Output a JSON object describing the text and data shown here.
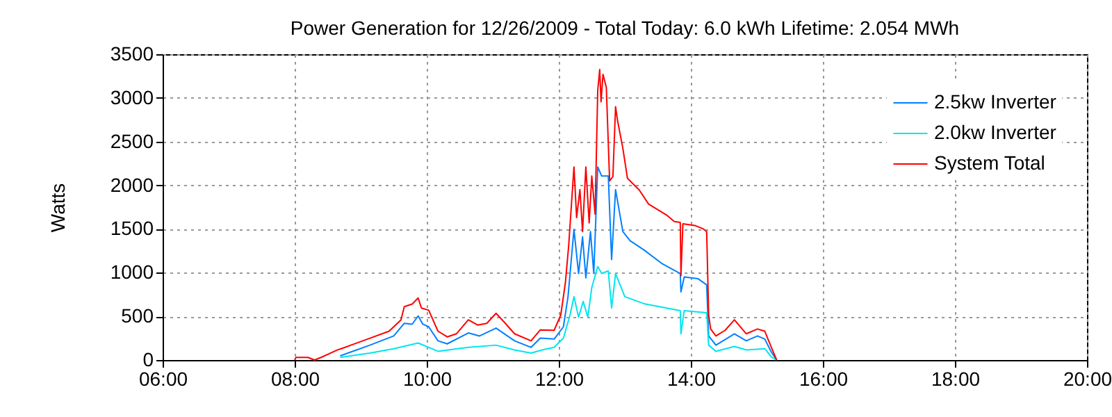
{
  "chart_data": {
    "type": "line",
    "title": "Power Generation for 12/26/2009 - Total Today: 6.0 kWh   Lifetime: 2.054 MWh",
    "ylabel": "Watts",
    "xlim": [
      6,
      20
    ],
    "ylim": [
      0,
      3500
    ],
    "xticks": [
      {
        "value": 6,
        "label": "06:00"
      },
      {
        "value": 8,
        "label": "08:00"
      },
      {
        "value": 10,
        "label": "10:00"
      },
      {
        "value": 12,
        "label": "12:00"
      },
      {
        "value": 14,
        "label": "14:00"
      },
      {
        "value": 16,
        "label": "16:00"
      },
      {
        "value": 18,
        "label": "18:00"
      },
      {
        "value": 20,
        "label": "20:00"
      }
    ],
    "yticks": [
      0,
      500,
      1000,
      1500,
      2000,
      2500,
      3000,
      3500
    ],
    "grid": true,
    "legend": "top right",
    "series": [
      {
        "name": "2.5kw Inverter",
        "color": "#0080ff",
        "x": [
          8.69,
          9.14,
          9.5,
          9.66,
          9.78,
          9.87,
          9.94,
          10.03,
          10.17,
          10.31,
          10.63,
          10.8,
          11.05,
          11.33,
          11.58,
          11.72,
          11.93,
          12.07,
          12.14,
          12.23,
          12.3,
          12.36,
          12.41,
          12.48,
          12.53,
          12.59,
          12.65,
          12.75,
          12.8,
          12.86,
          12.97,
          13.08,
          13.29,
          13.57,
          13.84,
          13.85,
          13.9,
          14.11,
          14.24,
          14.27,
          14.38,
          14.66,
          14.84,
          15.01,
          15.12,
          15.22,
          15.3
        ],
        "values": [
          48,
          170,
          275,
          420,
          410,
          505,
          410,
          380,
          220,
          185,
          310,
          275,
          365,
          220,
          145,
          250,
          240,
          380,
          725,
          1495,
          990,
          1410,
          940,
          1470,
          990,
          2210,
          2105,
          2105,
          1150,
          1950,
          1470,
          1365,
          1260,
          1100,
          990,
          780,
          950,
          930,
          860,
          275,
          170,
          300,
          220,
          275,
          240,
          90,
          0
        ]
      },
      {
        "name": "2.0kw Inverter",
        "color": "#00e5ee",
        "x": [
          8.69,
          9.14,
          9.5,
          9.87,
          10.17,
          10.63,
          11.05,
          11.33,
          11.58,
          11.75,
          11.93,
          12.07,
          12.17,
          12.23,
          12.3,
          12.37,
          12.44,
          12.5,
          12.59,
          12.65,
          12.75,
          12.8,
          12.86,
          13.0,
          13.29,
          13.84,
          13.85,
          13.9,
          14.24,
          14.27,
          14.38,
          14.66,
          14.84,
          15.12,
          15.22,
          15.3
        ],
        "values": [
          30,
          80,
          130,
          195,
          100,
          145,
          170,
          115,
          80,
          115,
          145,
          250,
          515,
          725,
          490,
          670,
          490,
          830,
          1070,
          990,
          1020,
          595,
          990,
          725,
          645,
          565,
          300,
          565,
          540,
          170,
          100,
          155,
          115,
          130,
          35,
          0
        ]
      },
      {
        "name": "System Total",
        "color": "#ff0000",
        "x": [
          8.0,
          8.02,
          8.2,
          8.3,
          8.4,
          8.65,
          8.72,
          9.14,
          9.43,
          9.61,
          9.66,
          9.78,
          9.87,
          9.92,
          10.03,
          10.17,
          10.31,
          10.45,
          10.63,
          10.77,
          10.91,
          11.05,
          11.19,
          11.33,
          11.58,
          11.72,
          11.93,
          12.03,
          12.1,
          12.15,
          12.23,
          12.27,
          12.32,
          12.36,
          12.41,
          12.46,
          12.5,
          12.55,
          12.59,
          12.62,
          12.64,
          12.67,
          12.72,
          12.77,
          12.82,
          12.86,
          12.89,
          12.97,
          13.04,
          13.22,
          13.36,
          13.64,
          13.75,
          13.84,
          13.85,
          13.88,
          14.06,
          14.19,
          14.24,
          14.27,
          14.3,
          14.38,
          14.52,
          14.66,
          14.84,
          15.01,
          15.12,
          15.22,
          15.3
        ],
        "values": [
          0,
          30,
          30,
          0,
          30,
          116,
          133,
          250,
          330,
          460,
          610,
          640,
          710,
          595,
          570,
          330,
          265,
          300,
          460,
          400,
          420,
          535,
          420,
          300,
          220,
          345,
          340,
          515,
          885,
          1310,
          2210,
          1630,
          1950,
          1470,
          2210,
          1570,
          2105,
          1670,
          3085,
          3325,
          2955,
          3270,
          3120,
          2050,
          2100,
          2900,
          2740,
          2425,
          2080,
          1945,
          1785,
          1655,
          1585,
          1575,
          965,
          1560,
          1540,
          1500,
          1470,
          515,
          355,
          275,
          340,
          460,
          300,
          355,
          330,
          145,
          0
        ]
      }
    ]
  }
}
